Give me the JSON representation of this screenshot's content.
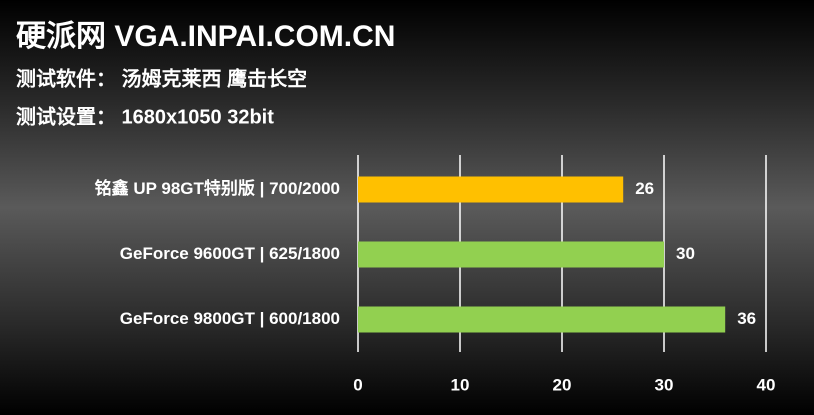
{
  "chart_data": {
    "type": "bar",
    "orientation": "horizontal",
    "title": "硬派网 VGA.INPAI.COM.CN",
    "subtitles": [
      "测试软件： 汤姆克莱西 鹰击长空",
      "测试设置： 1680x1050 32bit"
    ],
    "categories": [
      "铭鑫 UP 98GT特别版 | 700/2000",
      "GeForce 9600GT | 625/1800",
      "GeForce 9800GT | 600/1800"
    ],
    "values": [
      26,
      30,
      36
    ],
    "colors": [
      "#ffc000",
      "#92d050",
      "#92d050"
    ],
    "xlim": [
      0,
      40
    ],
    "xticks": [
      0,
      10,
      20,
      30,
      40
    ],
    "grid": true
  }
}
